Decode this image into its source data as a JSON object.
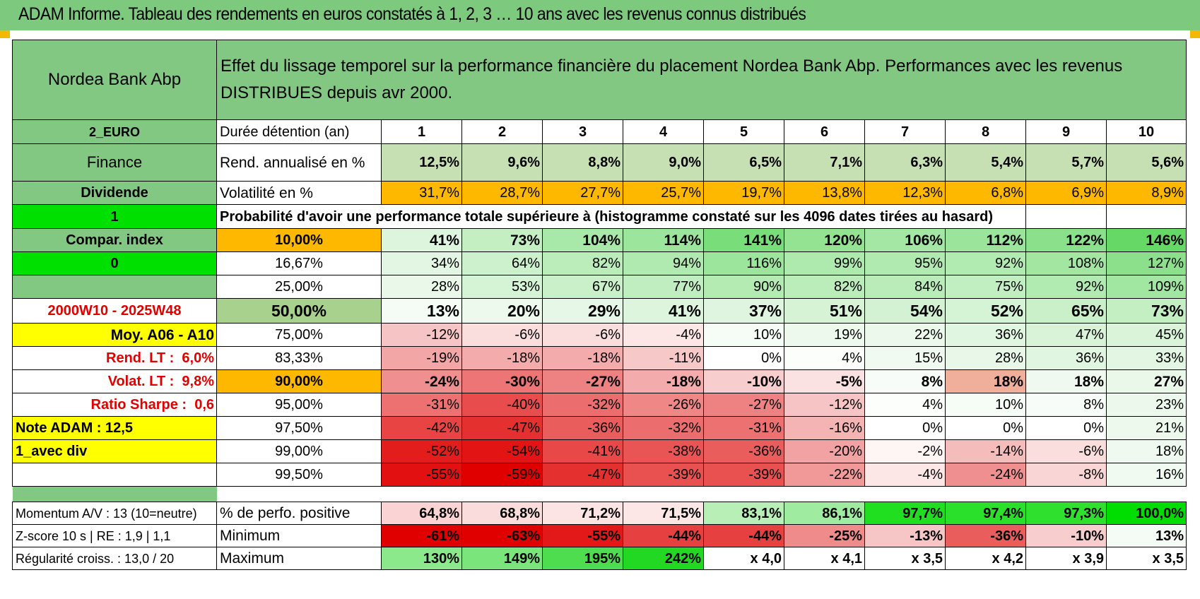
{
  "title": "ADAM Informe. Tableau des rendements en euros constatés à 1, 2, 3 … 10 ans avec les revenus connus distribués",
  "fund_name": "Nordea Bank Abp",
  "header_text": "Effet du lissage temporel sur la performance financière du placement Nordea Bank Abp. Performances avec les revenus DISTRIBUES depuis avr 2000.",
  "left": {
    "currency": "2_EURO",
    "sector": "Finance",
    "dist": "Dividende",
    "flag1": "1",
    "compar": "Compar. index",
    "flag0": "0",
    "period": "2000W10 - 2025W48",
    "moy": "Moy. A06 - A10",
    "rend_lt_label": "Rend. LT :",
    "rend_lt_value": "6,0%",
    "volat_lt_label": "Volat. LT :",
    "volat_lt_value": "9,8%",
    "sharpe_label": "Ratio Sharpe :",
    "sharpe_value": "0,6",
    "note": "Note ADAM : 12,5",
    "avec_div": "1_avec div",
    "momentum": "Momentum A/V : 13 (10=neutre)",
    "zscore": "Z-score 10 s | RE : 1,9 | 1,1",
    "regul": "Régularité croiss. : 13,0 / 20"
  },
  "duration_label": "Durée détention (an)",
  "years": [
    "1",
    "2",
    "3",
    "4",
    "5",
    "6",
    "7",
    "8",
    "9",
    "10"
  ],
  "rend_label": "Rend. annualisé en %",
  "rend": [
    "12,5%",
    "9,6%",
    "8,8%",
    "9,0%",
    "6,5%",
    "7,1%",
    "6,3%",
    "5,4%",
    "5,7%",
    "5,6%"
  ],
  "vol_label": "Volatilité en %",
  "vol": [
    "31,7%",
    "28,7%",
    "27,7%",
    "25,7%",
    "19,7%",
    "13,8%",
    "12,3%",
    "6,8%",
    "6,9%",
    "8,9%"
  ],
  "prob_label": "Probabilité d'avoir une performance totale supérieure à (histogramme constaté sur les 4096 dates tirées au hasard)",
  "prob_rows": [
    {
      "threshold": "10,00%",
      "values": [
        "41%",
        "73%",
        "104%",
        "114%",
        "141%",
        "120%",
        "106%",
        "112%",
        "122%",
        "146%"
      ],
      "colors": [
        "#ddf5dd",
        "#c3efc3",
        "#a8e8a8",
        "#9ce59c",
        "#79dd79",
        "#93e393",
        "#a4e7a4",
        "#9be49b",
        "#8be08b",
        "#66d866"
      ]
    },
    {
      "threshold": "16,67%",
      "values": [
        "34%",
        "64%",
        "82%",
        "94%",
        "116%",
        "99%",
        "95%",
        "92%",
        "108%",
        "127%"
      ],
      "colors": [
        "#e3f6e3",
        "#ccf1cc",
        "#bbedbb",
        "#b1eab1",
        "#9ce59c",
        "#aee9ae",
        "#b0eab0",
        "#b2ebb2",
        "#a2e6a2",
        "#8ce08c"
      ]
    },
    {
      "threshold": "25,00%",
      "values": [
        "28%",
        "53%",
        "67%",
        "77%",
        "90%",
        "82%",
        "84%",
        "75%",
        "92%",
        "109%"
      ],
      "colors": [
        "#e9f8e9",
        "#d5f3d5",
        "#c9f0c9",
        "#c0eec0",
        "#b3ebb3",
        "#bbedbb",
        "#b9ecb9",
        "#c2efc2",
        "#b2ebb2",
        "#a1e6a1"
      ]
    },
    {
      "threshold": "50,00%",
      "values": [
        "13%",
        "20%",
        "29%",
        "41%",
        "37%",
        "51%",
        "54%",
        "52%",
        "65%",
        "73%"
      ],
      "colors": [
        "#f5fbf5",
        "#eef9ee",
        "#e7f7e7",
        "#ddf5dd",
        "#e0f5e0",
        "#d6f3d6",
        "#d3f2d3",
        "#d5f3d5",
        "#caf0ca",
        "#c3efc3"
      ]
    },
    {
      "threshold": "75,00%",
      "values": [
        "-12%",
        "-6%",
        "-6%",
        "-4%",
        "10%",
        "19%",
        "22%",
        "36%",
        "47%",
        "45%"
      ],
      "colors": [
        "#f6c4c4",
        "#fadede",
        "#fadede",
        "#fce6e6",
        "#f6fcf6",
        "#eef9ee",
        "#ecf8ec",
        "#e1f6e1",
        "#d8f3d8",
        "#daf4da"
      ]
    },
    {
      "threshold": "83,33%",
      "values": [
        "-19%",
        "-18%",
        "-18%",
        "-11%",
        "0%",
        "4%",
        "15%",
        "28%",
        "36%",
        "33%"
      ],
      "colors": [
        "#f3a6a6",
        "#f3abab",
        "#f3abab",
        "#f6c8c8",
        "#ffffff",
        "#fbfefb",
        "#f1faf1",
        "#e8f7e8",
        "#e1f6e1",
        "#e3f6e3"
      ]
    },
    {
      "threshold": "90,00%",
      "values": [
        "-24%",
        "-30%",
        "-27%",
        "-18%",
        "-10%",
        "-5%",
        "8%",
        "18%",
        "18%",
        "27%"
      ],
      "colors": [
        "#f08f8f",
        "#ed7575",
        "#ee8282",
        "#f3abab",
        "#f7cdcd",
        "#fbe2e2",
        "#f8fcf8",
        "#efaf9a00",
        "#eff9ef",
        "#e9f8e9"
      ]
    },
    {
      "threshold": "95,00%",
      "values": [
        "-31%",
        "-40%",
        "-32%",
        "-26%",
        "-27%",
        "-12%",
        "4%",
        "10%",
        "8%",
        "23%"
      ],
      "colors": [
        "#ed7171",
        "#e84c4c",
        "#ec6d6d",
        "#ef8787",
        "#ee8282",
        "#f6c4c4",
        "#fbfefb",
        "#f6fcf6",
        "#f8fcf8",
        "#ecf8ec"
      ]
    },
    {
      "threshold": "97,50%",
      "values": [
        "-42%",
        "-47%",
        "-36%",
        "-32%",
        "-31%",
        "-16%",
        "0%",
        "0%",
        "0%",
        "21%"
      ],
      "colors": [
        "#e84444",
        "#e53030",
        "#ea5d5d",
        "#ec6d6d",
        "#ed7171",
        "#f4b4b4",
        "#ffffff",
        "#ffffff",
        "#ffffff",
        "#edf9ed"
      ]
    },
    {
      "threshold": "99,00%",
      "values": [
        "-52%",
        "-54%",
        "-41%",
        "-38%",
        "-36%",
        "-20%",
        "-2%",
        "-14%",
        "-6%",
        "18%"
      ],
      "colors": [
        "#e31c1c",
        "#e21414",
        "#e84848",
        "#e95454",
        "#ea5d5d",
        "#f2a2a2",
        "#fef5f5",
        "#f5bcbc",
        "#fadede",
        "#eff9ef"
      ]
    },
    {
      "threshold": "99,50%",
      "values": [
        "-55%",
        "-59%",
        "-47%",
        "-39%",
        "-39%",
        "-22%",
        "-4%",
        "-24%",
        "-8%",
        "16%"
      ],
      "colors": [
        "#e21010",
        "#e00000",
        "#e53030",
        "#e95050",
        "#e95050",
        "#f19999",
        "#fce6e6",
        "#f08f8f",
        "#f9d5d5",
        "#f0faf0"
      ]
    }
  ],
  "pos_label": "% de perfo. positive",
  "pos": [
    "64,8%",
    "68,8%",
    "71,2%",
    "71,5%",
    "83,1%",
    "86,1%",
    "97,7%",
    "97,4%",
    "97,3%",
    "100,0%"
  ],
  "pos_colors": [
    "#fad4d4",
    "#fbdcdc",
    "#fce4e4",
    "#fce6e6",
    "#b7efb7",
    "#9feb9f",
    "#20df20",
    "#2be02b",
    "#2fe02f",
    "#00dd00"
  ],
  "min_label": "Minimum",
  "min": [
    "-61%",
    "-63%",
    "-55%",
    "-44%",
    "-44%",
    "-25%",
    "-13%",
    "-36%",
    "-10%",
    "13%"
  ],
  "min_colors": [
    "#e00000",
    "#e00000",
    "#e31818",
    "#e74040",
    "#e74040",
    "#ef8b8b",
    "#f6c6c6",
    "#ea5d5d",
    "#f7cdcd",
    "#f5fbf5"
  ],
  "max_label": "Maximum",
  "max": [
    "130%",
    "149%",
    "195%",
    "242%",
    "x 4,0",
    "x 4,1",
    "x 3,5",
    "x 4,2",
    "x 3,9",
    "x 3,5"
  ],
  "max_colors": [
    "#8be88b",
    "#7ae57a",
    "#4edd4e",
    "#22d822",
    "#ffffff",
    "#ffffff",
    "#ffffff",
    "#ffffff",
    "#ffffff",
    "#ffffff"
  ]
}
